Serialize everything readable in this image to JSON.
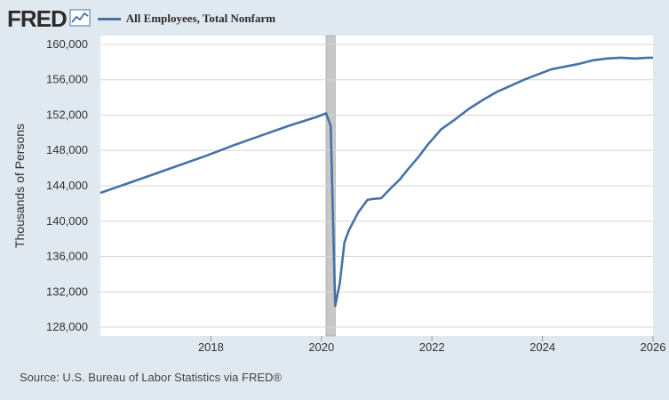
{
  "header": {
    "logo_text": "FRED",
    "logo_icon": "trend-chart-icon",
    "legend_label": "All Employees, Total Nonfarm"
  },
  "source": "Source: U.S. Bureau of Labor Statistics via FRED®",
  "colors": {
    "background": "#e1e9f0",
    "plot_background": "#ffffff",
    "series": "#4572a7",
    "grid": "#d6d6d6",
    "recession": "#c8c8c8"
  },
  "chart_data": {
    "type": "line",
    "ylabel": "Thousands of Persons",
    "xlabel": "",
    "ylim": [
      127000,
      161000
    ],
    "y_ticks": [
      128000,
      132000,
      136000,
      140000,
      144000,
      148000,
      152000,
      156000,
      160000
    ],
    "y_tick_labels": [
      "128,000",
      "132,000",
      "136,000",
      "140,000",
      "144,000",
      "148,000",
      "152,000",
      "156,000",
      "160,000"
    ],
    "x_ticks": [
      "2018",
      "2020",
      "2022",
      "2024",
      "2026"
    ],
    "x_range": [
      "2016-01",
      "2026-01"
    ],
    "grid": true,
    "recession_shading": [
      "2020-02",
      "2020-04"
    ],
    "series": [
      {
        "name": "All Employees, Total Nonfarm",
        "points": [
          [
            "2016-01",
            143200
          ],
          [
            "2016-06",
            144100
          ],
          [
            "2016-12",
            145200
          ],
          [
            "2017-06",
            146300
          ],
          [
            "2017-12",
            147400
          ],
          [
            "2018-06",
            148600
          ],
          [
            "2018-12",
            149700
          ],
          [
            "2019-06",
            150800
          ],
          [
            "2019-12",
            151800
          ],
          [
            "2020-02",
            152200
          ],
          [
            "2020-03",
            150800
          ],
          [
            "2020-04",
            130400
          ],
          [
            "2020-05",
            133000
          ],
          [
            "2020-06",
            137600
          ],
          [
            "2020-07",
            139000
          ],
          [
            "2020-09",
            141000
          ],
          [
            "2020-11",
            142400
          ],
          [
            "2020-12",
            142500
          ],
          [
            "2021-02",
            142600
          ],
          [
            "2021-04",
            143700
          ],
          [
            "2021-06",
            144700
          ],
          [
            "2021-08",
            146000
          ],
          [
            "2021-10",
            147200
          ],
          [
            "2021-12",
            148600
          ],
          [
            "2022-03",
            150400
          ],
          [
            "2022-06",
            151500
          ],
          [
            "2022-09",
            152700
          ],
          [
            "2022-12",
            153700
          ],
          [
            "2023-03",
            154600
          ],
          [
            "2023-06",
            155300
          ],
          [
            "2023-09",
            156000
          ],
          [
            "2023-12",
            156600
          ],
          [
            "2024-03",
            157200
          ],
          [
            "2024-06",
            157500
          ],
          [
            "2024-09",
            157800
          ],
          [
            "2024-12",
            158200
          ],
          [
            "2025-03",
            158400
          ],
          [
            "2025-06",
            158500
          ],
          [
            "2025-09",
            158400
          ],
          [
            "2025-12",
            158500
          ],
          [
            "2026-01",
            158500
          ]
        ]
      }
    ]
  }
}
